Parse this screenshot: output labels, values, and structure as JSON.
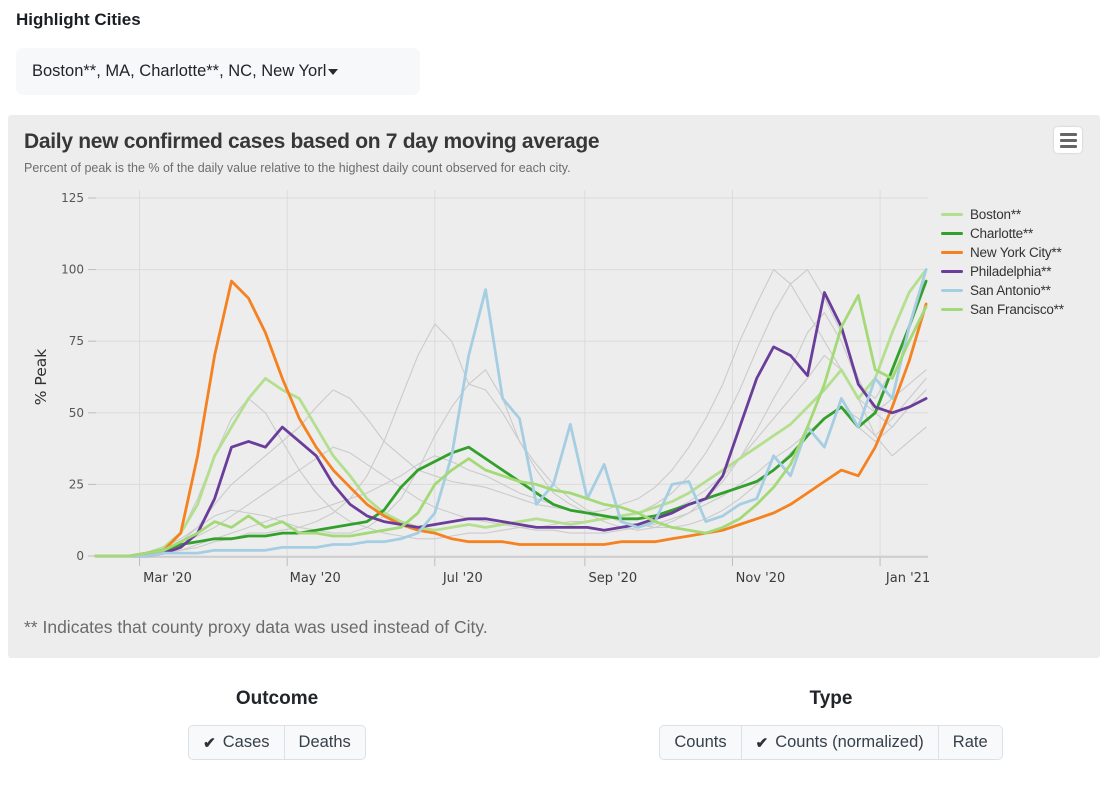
{
  "highlight": {
    "label": "Highlight Cities",
    "value": "Boston**, MA, Charlotte**, NC, New Yorl"
  },
  "chart": {
    "title": "Daily new confirmed cases based on 7 day moving average",
    "subtitle": "Percent of peak is the % of the daily value relative to the highest daily count observed for each city.",
    "y_axis_title": "% Peak",
    "footnote": "** Indicates that county proxy data was used instead of City.",
    "menu_icon": "hamburger-icon"
  },
  "chart_data": {
    "type": "line",
    "title": "Daily new confirmed cases based on 7 day moving average",
    "subtitle": "Percent of peak is the % of the daily value relative to the highest daily count observed for each city.",
    "ylabel": "% Peak",
    "ylim": [
      0,
      125
    ],
    "y_ticks": [
      0,
      25,
      50,
      75,
      100,
      125
    ],
    "x_tick_labels": [
      "Mar '20",
      "May '20",
      "Jul '20",
      "Sep '20",
      "Nov '20",
      "Jan '21"
    ],
    "x_tick_days": [
      18,
      79,
      140,
      202,
      263,
      324
    ],
    "x_sample_step_days": 7,
    "x_range_note": "weekly samples, Feb 2020 through Jan 2021",
    "grid": true,
    "legend_position": "right",
    "background_line_color": "#cbcbcb",
    "series": [
      {
        "name": "Boston**",
        "color": "#b4df8e",
        "values": [
          0,
          0,
          0,
          1,
          3,
          8,
          18,
          35,
          45,
          55,
          62,
          58,
          55,
          45,
          35,
          28,
          20,
          15,
          12,
          10,
          9,
          10,
          11,
          10,
          11,
          12,
          13,
          12,
          11,
          12,
          13,
          14,
          15,
          17,
          19,
          22,
          26,
          30,
          34,
          38,
          42,
          46,
          52,
          58,
          65,
          55,
          62,
          78,
          92,
          100
        ]
      },
      {
        "name": "Charlotte**",
        "color": "#33a02c",
        "values": [
          0,
          0,
          0,
          1,
          2,
          4,
          5,
          6,
          6,
          7,
          7,
          8,
          8,
          9,
          10,
          11,
          12,
          16,
          24,
          30,
          33,
          36,
          38,
          34,
          30,
          26,
          22,
          18,
          16,
          15,
          14,
          13,
          13,
          14,
          16,
          18,
          20,
          22,
          24,
          26,
          30,
          35,
          42,
          48,
          52,
          45,
          50,
          65,
          80,
          96
        ]
      },
      {
        "name": "New York City**",
        "color": "#f58220",
        "values": [
          0,
          0,
          0,
          1,
          2,
          8,
          35,
          70,
          96,
          90,
          78,
          62,
          48,
          38,
          30,
          24,
          18,
          14,
          11,
          9,
          8,
          6,
          5,
          5,
          5,
          4,
          4,
          4,
          4,
          4,
          4,
          5,
          5,
          5,
          6,
          7,
          8,
          9,
          11,
          13,
          15,
          18,
          22,
          26,
          30,
          28,
          38,
          52,
          68,
          88
        ]
      },
      {
        "name": "Philadelphia**",
        "color": "#6a3d9a",
        "values": [
          0,
          0,
          0,
          0,
          1,
          3,
          8,
          20,
          38,
          40,
          38,
          45,
          40,
          35,
          25,
          18,
          14,
          12,
          11,
          10,
          11,
          12,
          13,
          13,
          12,
          11,
          10,
          10,
          10,
          10,
          9,
          10,
          11,
          13,
          15,
          18,
          20,
          28,
          45,
          62,
          73,
          70,
          63,
          92,
          80,
          60,
          52,
          50,
          52,
          55
        ]
      },
      {
        "name": "San Antonio**",
        "color": "#a6cee3",
        "values": [
          0,
          0,
          0,
          0,
          1,
          1,
          1,
          2,
          2,
          2,
          2,
          3,
          3,
          3,
          4,
          4,
          5,
          5,
          6,
          8,
          15,
          35,
          70,
          93,
          55,
          48,
          18,
          25,
          46,
          20,
          32,
          12,
          10,
          12,
          25,
          26,
          12,
          14,
          18,
          20,
          35,
          28,
          45,
          38,
          55,
          45,
          62,
          55,
          80,
          100
        ]
      },
      {
        "name": "San Francisco**",
        "color": "#a3d977",
        "values": [
          0,
          0,
          0,
          1,
          2,
          5,
          8,
          12,
          10,
          14,
          10,
          12,
          8,
          8,
          7,
          7,
          8,
          9,
          10,
          15,
          25,
          30,
          34,
          30,
          28,
          26,
          25,
          23,
          22,
          20,
          18,
          17,
          15,
          12,
          10,
          9,
          8,
          10,
          13,
          18,
          24,
          32,
          45,
          60,
          80,
          91,
          65,
          62,
          75,
          87
        ]
      }
    ],
    "background_series": [
      {
        "name": "unhighlighted-city-1",
        "values": [
          0,
          0,
          0,
          1,
          2,
          5,
          10,
          18,
          25,
          30,
          35,
          40,
          45,
          52,
          58,
          55,
          48,
          40,
          35,
          30,
          28,
          26,
          25,
          24,
          22,
          20,
          18,
          17,
          16,
          15,
          16,
          18,
          20,
          24,
          30,
          38,
          48,
          60,
          75,
          88,
          100,
          95,
          85,
          75,
          65,
          55,
          50,
          55,
          60,
          65
        ]
      },
      {
        "name": "unhighlighted-city-2",
        "values": [
          0,
          0,
          0,
          0,
          1,
          2,
          3,
          5,
          6,
          8,
          8,
          9,
          10,
          12,
          15,
          20,
          28,
          40,
          55,
          70,
          81,
          75,
          60,
          65,
          55,
          40,
          30,
          22,
          18,
          15,
          12,
          10,
          9,
          10,
          12,
          15,
          20,
          26,
          34,
          44,
          55,
          65,
          78,
          85,
          75,
          60,
          55,
          65,
          80,
          95
        ]
      },
      {
        "name": "unhighlighted-city-3",
        "values": [
          0,
          0,
          0,
          1,
          3,
          6,
          10,
          14,
          16,
          15,
          14,
          12,
          10,
          9,
          8,
          8,
          10,
          14,
          20,
          30,
          42,
          52,
          60,
          58,
          50,
          40,
          32,
          25,
          20,
          16,
          14,
          12,
          11,
          10,
          10,
          11,
          13,
          16,
          20,
          25,
          30,
          36,
          42,
          48,
          52,
          45,
          40,
          45,
          52,
          58
        ]
      },
      {
        "name": "unhighlighted-city-4",
        "values": [
          0,
          0,
          0,
          1,
          3,
          8,
          20,
          35,
          48,
          55,
          50,
          40,
          30,
          22,
          16,
          12,
          10,
          8,
          7,
          6,
          6,
          7,
          8,
          8,
          9,
          10,
          10,
          11,
          12,
          12,
          13,
          14,
          15,
          18,
          22,
          28,
          36,
          46,
          58,
          72,
          85,
          95,
          100,
          90,
          78,
          62,
          50,
          45,
          52,
          58
        ]
      },
      {
        "name": "unhighlighted-city-5",
        "values": [
          0,
          0,
          0,
          0,
          1,
          2,
          4,
          6,
          8,
          10,
          12,
          14,
          15,
          16,
          18,
          20,
          22,
          25,
          28,
          32,
          35,
          33,
          30,
          28,
          25,
          22,
          20,
          18,
          16,
          15,
          14,
          13,
          13,
          14,
          16,
          19,
          23,
          28,
          34,
          41,
          48,
          55,
          62,
          70,
          65,
          55,
          42,
          35,
          40,
          45
        ]
      },
      {
        "name": "unhighlighted-city-6",
        "values": [
          0,
          0,
          0,
          1,
          2,
          4,
          7,
          10,
          14,
          18,
          22,
          26,
          30,
          34,
          38,
          36,
          32,
          28,
          24,
          20,
          17,
          15,
          13,
          12,
          11,
          10,
          9,
          9,
          8,
          8,
          8,
          9,
          10,
          11,
          13,
          15,
          18,
          21,
          25,
          29,
          34,
          38,
          43,
          48,
          52,
          48,
          42,
          48,
          55,
          62
        ]
      }
    ]
  },
  "controls": {
    "outcome": {
      "label": "Outcome",
      "options": [
        {
          "label": "Cases",
          "checked": true
        },
        {
          "label": "Deaths",
          "checked": false
        }
      ]
    },
    "type": {
      "label": "Type",
      "options": [
        {
          "label": "Counts",
          "checked": false
        },
        {
          "label": "Counts (normalized)",
          "checked": true
        },
        {
          "label": "Rate",
          "checked": false
        }
      ]
    }
  },
  "colors": {
    "card_background": "#ededed",
    "gridline": "#dcdcdc",
    "axis_line": "#c9c9c9",
    "tick": "#bdbdbd",
    "y_label": "#565656",
    "x_label": "#3c3c3c",
    "check_icon": "✔"
  }
}
